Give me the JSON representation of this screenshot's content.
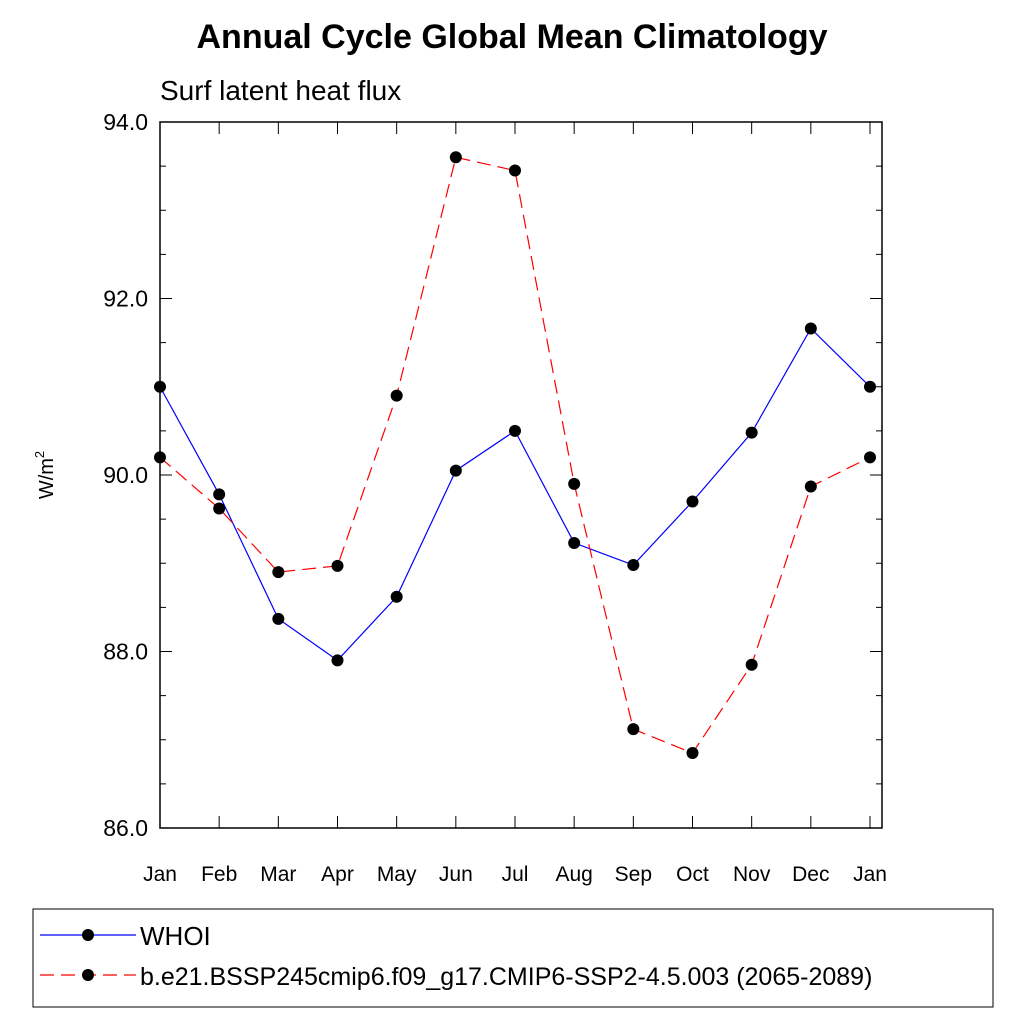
{
  "chart_data": {
    "type": "line",
    "title": "Annual Cycle Global Mean Climatology",
    "subtitle": "Surf latent heat flux",
    "ylabel": "W/m",
    "ylabel_superscript": "2",
    "xlabel": "",
    "categories": [
      "Jan",
      "Feb",
      "Mar",
      "Apr",
      "May",
      "Jun",
      "Jul",
      "Aug",
      "Sep",
      "Oct",
      "Nov",
      "Dec",
      "Jan"
    ],
    "ylim": [
      86.0,
      94.0
    ],
    "yticks": [
      "86.0",
      "88.0",
      "90.0",
      "92.0",
      "94.0"
    ],
    "series": [
      {
        "name": "WHOI",
        "color": "#0000ff",
        "style": "solid",
        "values": [
          91.0,
          89.78,
          88.37,
          87.9,
          88.62,
          90.05,
          90.5,
          89.23,
          88.98,
          89.7,
          90.48,
          91.66,
          91.0
        ]
      },
      {
        "name": "b.e21.BSSP245cmip6.f09_g17.CMIP6-SSP2-4.5.003 (2065-2089)",
        "color": "#ff0000",
        "style": "dashed",
        "values": [
          90.2,
          89.62,
          88.9,
          88.97,
          90.9,
          93.6,
          93.45,
          89.9,
          87.12,
          86.85,
          87.85,
          89.87,
          90.2
        ]
      }
    ],
    "legend_position": "bottom",
    "grid": false
  }
}
